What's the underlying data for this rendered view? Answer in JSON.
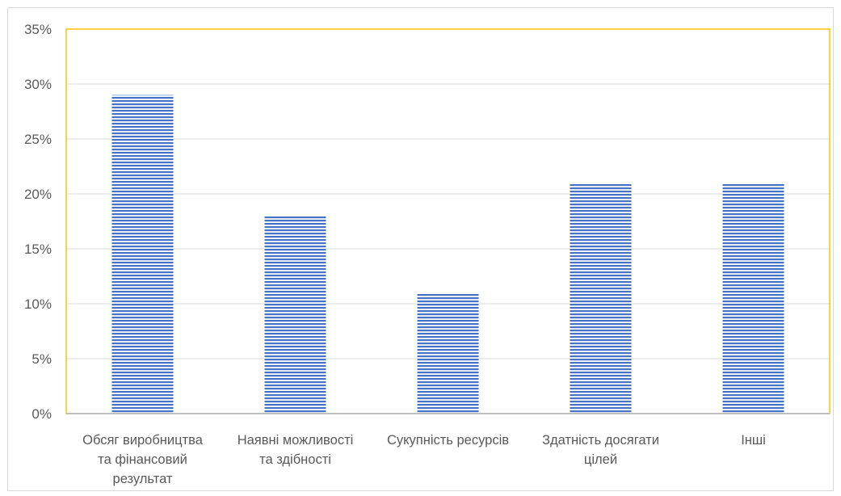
{
  "chart_data": {
    "type": "bar",
    "categories": [
      [
        "Обсяг виробництва",
        "та фінансовий",
        "результат"
      ],
      [
        "Наявні можливості",
        "та здібності"
      ],
      [
        "Сукупність ресурсів"
      ],
      [
        "Здатність досягати",
        "цілей"
      ],
      [
        "Інші"
      ]
    ],
    "values": [
      29,
      18,
      11,
      21,
      21
    ],
    "ylim": [
      0,
      35
    ],
    "yticks": [
      0,
      5,
      10,
      15,
      20,
      25,
      30,
      35
    ],
    "ytick_labels": [
      "0%",
      "5%",
      "10%",
      "15%",
      "20%",
      "25%",
      "30%",
      "35%"
    ],
    "grid": true,
    "legend": "none",
    "title": "",
    "xlabel": "",
    "ylabel": "",
    "colors": {
      "bar_stripe": "#4472c4",
      "bar_gap": "#ffffff",
      "plot_border": "#ffc000",
      "gridline": "#d9d9d9",
      "axis_line": "#bfbfbf",
      "outer_border": "#d9d9d9",
      "text": "#595959"
    }
  }
}
